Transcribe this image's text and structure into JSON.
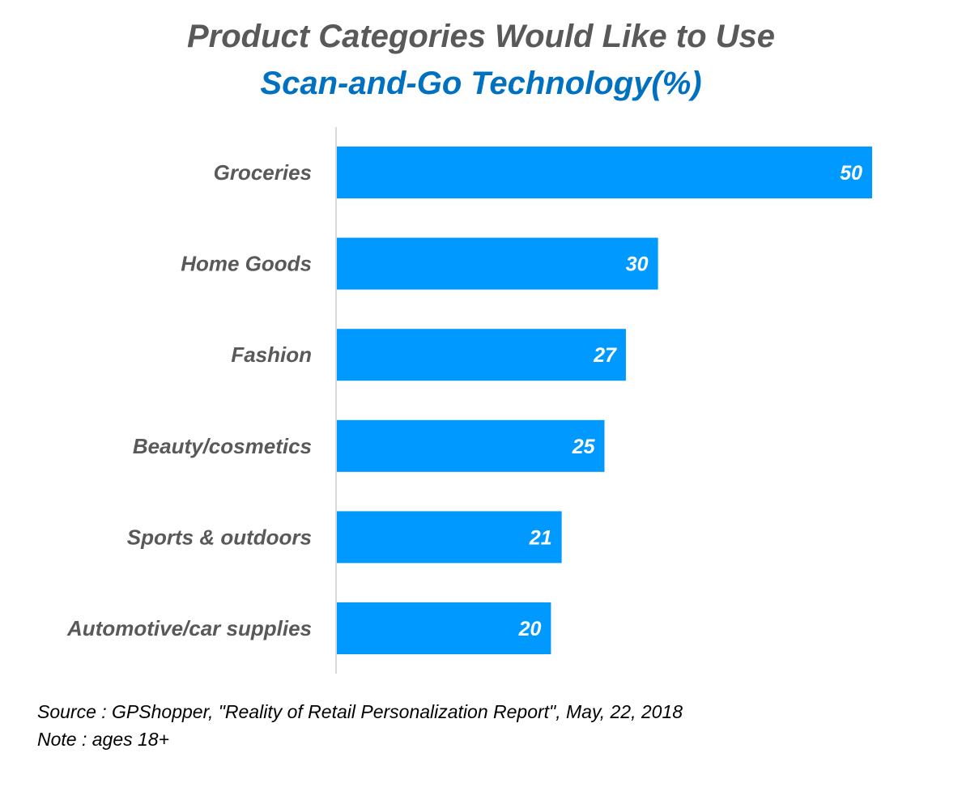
{
  "chart_data": {
    "type": "bar",
    "orientation": "horizontal",
    "title_line1": "Product Categories Would Like to Use",
    "title_line2": "Scan-and-Go Technology(%)",
    "categories": [
      "Groceries",
      "Home Goods",
      "Fashion",
      "Beauty/cosmetics",
      "Sports & outdoors",
      "Automotive/car supplies"
    ],
    "values": [
      50,
      30,
      27,
      25,
      21,
      20
    ],
    "xlim": [
      0,
      50
    ],
    "grid": false,
    "bar_color": "#0099ff",
    "axis_color": "#d9d9d9"
  },
  "colors": {
    "title_primary": "#595959",
    "title_accent": "#0070c0"
  },
  "footnotes": {
    "source": "Source : GPShopper, \"Reality of Retail Personalization Report\", May, 22, 2018",
    "note": "Note : ages 18+"
  }
}
